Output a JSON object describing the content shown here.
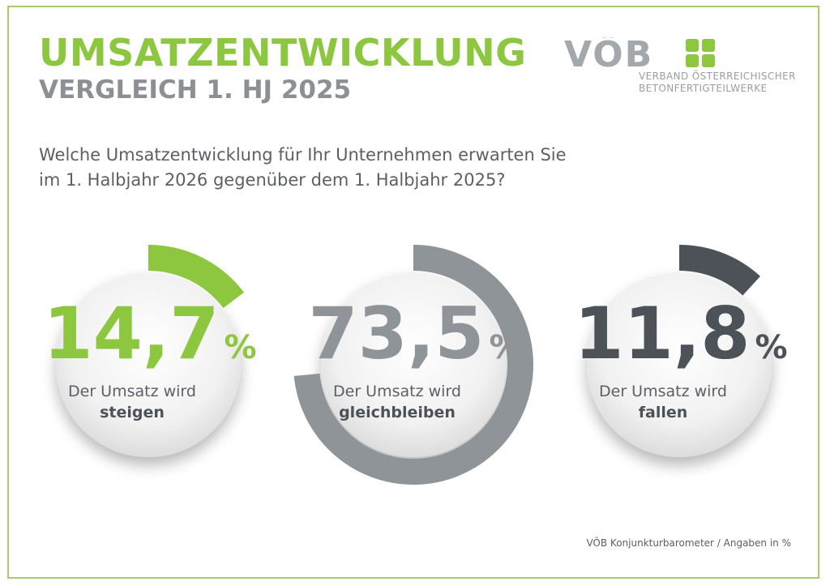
{
  "header": {
    "title": "UMSATZENTWICKLUNG",
    "subtitle": "VERGLEICH 1. HJ 2025"
  },
  "logo": {
    "wordmark": "VÖB",
    "line1": "VERBAND ÖSTERREICHISCHER",
    "line2": "BETONFERTIGTEILWERKE",
    "gray": "#a3a8ac",
    "green": "#8dc63f"
  },
  "question": {
    "line1": "Welche Umsatzentwicklung für Ihr Unternehmen erwarten Sie",
    "line2": "im 1. Halbjahr 2026 gegenüber dem 1. Halbjahr 2025?"
  },
  "chart_data": {
    "type": "pie",
    "unit": "%",
    "categories": [
      "steigen",
      "gleichbleiben",
      "fallen"
    ],
    "values": [
      14.7,
      73.5,
      11.8
    ],
    "value_labels": [
      "14,7",
      "73,5",
      "11,8"
    ],
    "label_prefix": "Der Umsatz wird",
    "colors": [
      "#8dc63f",
      "#8f9499",
      "#4d5258"
    ]
  },
  "footnote": "VÖB Konjunkturbarometer / Angaben in %"
}
